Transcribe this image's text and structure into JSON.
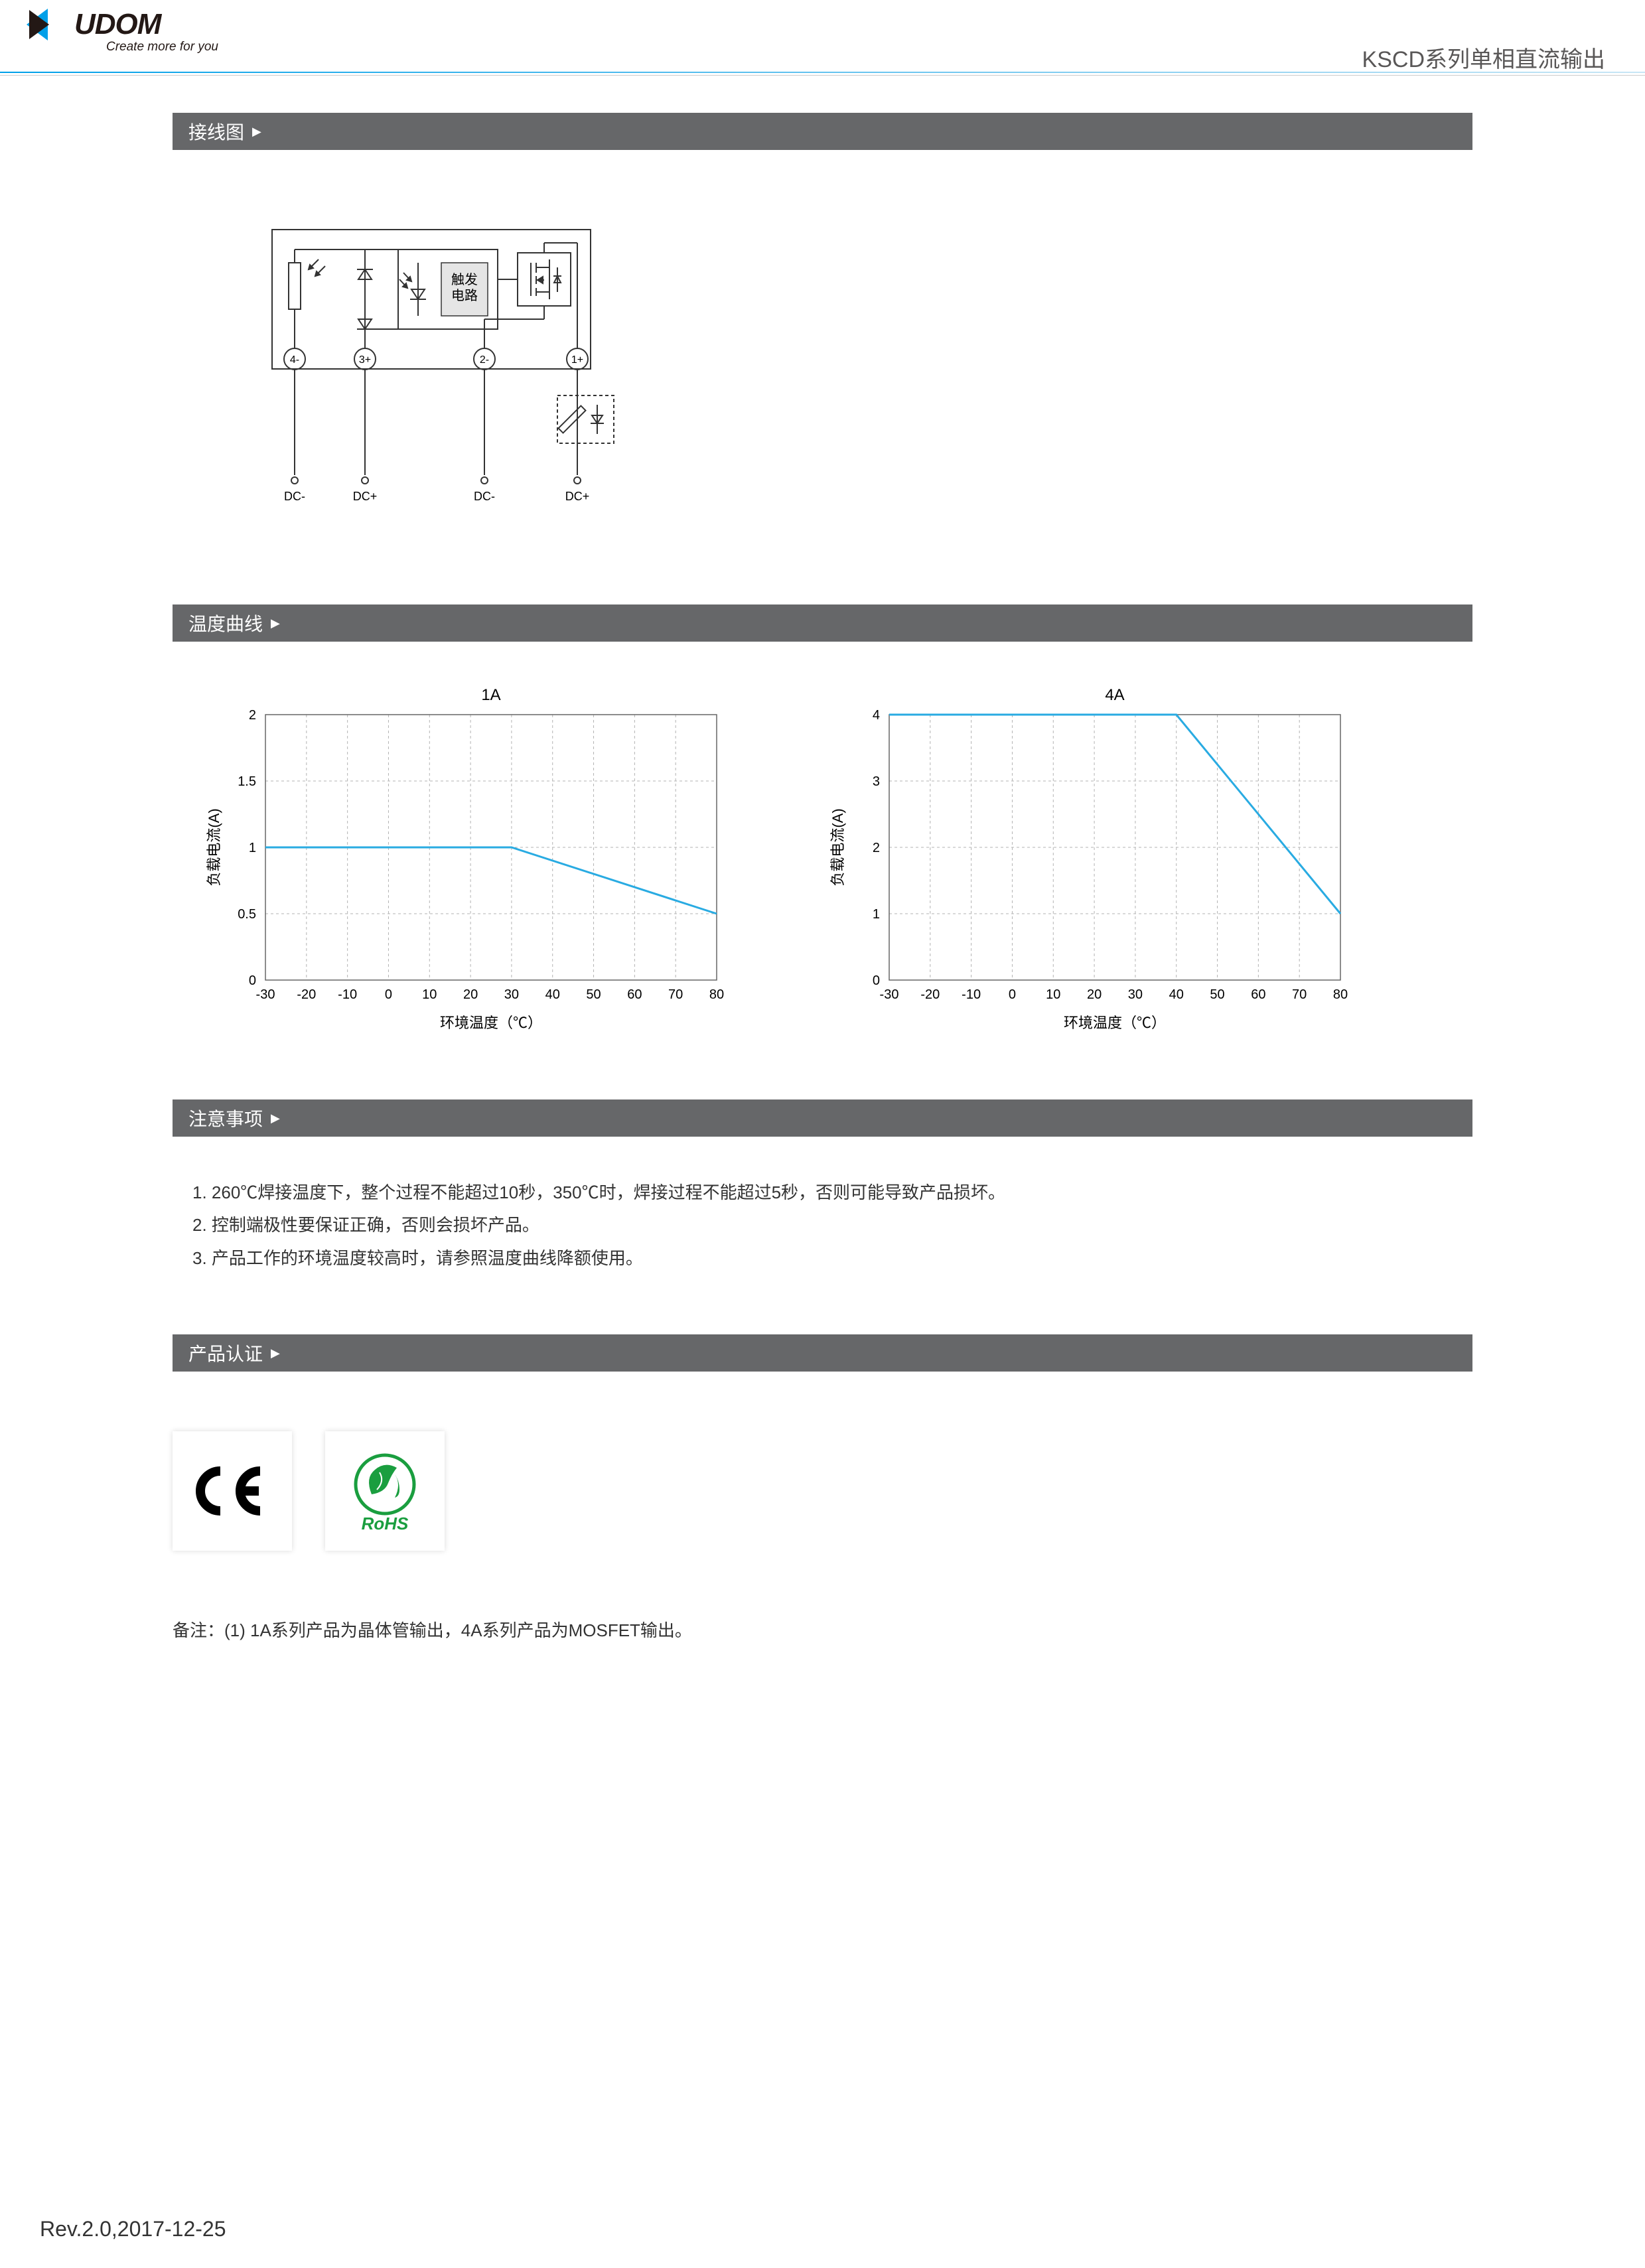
{
  "header": {
    "logo_text": "UDOM",
    "slogan": "Create more for you",
    "right": "KSCD系列单相直流输出"
  },
  "sections": {
    "wiring": "接线图",
    "temperature": "温度曲线",
    "notes": "注意事项",
    "cert": "产品认证"
  },
  "diagram": {
    "trigger": "触发\n电路",
    "pins": [
      "4-",
      "3+",
      "2-",
      "1+"
    ],
    "labels": [
      "DC-",
      "DC+",
      "DC-",
      "DC+"
    ]
  },
  "chart1": {
    "title": "1A",
    "ylabel": "负载电流(A)",
    "xlabel": "环境温度（℃）",
    "xticks": [
      "-30",
      "-20",
      "-10",
      "0",
      "10",
      "20",
      "30",
      "40",
      "50",
      "60",
      "70",
      "80"
    ],
    "yticks": [
      "0",
      "0.5",
      "1",
      "1.5",
      "2"
    ],
    "xmin": -30,
    "xmax": 80,
    "ymin": 0,
    "ymax": 2,
    "line": [
      [
        -30,
        1
      ],
      [
        30,
        1
      ],
      [
        80,
        0.5
      ]
    ],
    "line_color": "#29abe2",
    "line_width": 3,
    "grid_color": "#b3b3b3",
    "grid_dash": "4,4",
    "border_color": "#666",
    "font_size": 20
  },
  "chart2": {
    "title": "4A",
    "ylabel": "负载电流(A)",
    "xlabel": "环境温度（℃）",
    "xticks": [
      "-30",
      "-20",
      "-10",
      "0",
      "10",
      "20",
      "30",
      "40",
      "50",
      "60",
      "70",
      "80"
    ],
    "yticks": [
      "0",
      "1",
      "2",
      "3",
      "4"
    ],
    "xmin": -30,
    "xmax": 80,
    "ymin": 0,
    "ymax": 4,
    "line": [
      [
        -30,
        4
      ],
      [
        40,
        4
      ],
      [
        80,
        1
      ]
    ],
    "line_color": "#29abe2",
    "line_width": 3,
    "grid_color": "#b3b3b3",
    "grid_dash": "4,4",
    "border_color": "#666",
    "font_size": 20
  },
  "notes_list": [
    "1. 260℃焊接温度下，整个过程不能超过10秒，350℃时，焊接过程不能超过5秒，否则可能导致产品损坏。",
    "2. 控制端极性要保证正确，否则会损坏产品。",
    "3. 产品工作的环境温度较高时，请参照温度曲线降额使用。"
  ],
  "certs": {
    "ce": "CE",
    "rohs": "RoHS",
    "rohs_color": "#1a9e3f"
  },
  "remark": "备注：(1) 1A系列产品为晶体管输出，4A系列产品为MOSFET输出。",
  "footer": "Rev.2.0,2017-12-25"
}
